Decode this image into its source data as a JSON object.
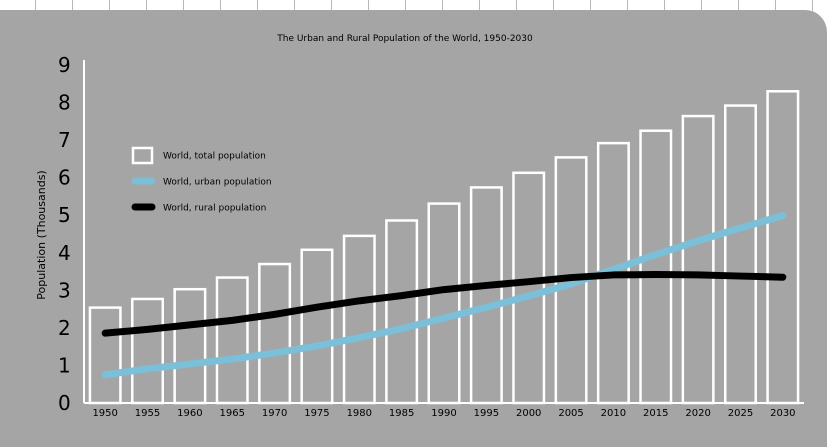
{
  "chart_data": {
    "type": "bar",
    "title": "The Urban and Rural Population of the World, 1950-2030",
    "ylabel": "Population (Thousands)",
    "xlabel": "",
    "ylim": [
      0,
      9
    ],
    "yticks": [
      0,
      1,
      2,
      3,
      4,
      5,
      6,
      7,
      8,
      9
    ],
    "categories": [
      "1950",
      "1955",
      "1960",
      "1965",
      "1970",
      "1975",
      "1980",
      "1985",
      "1990",
      "1995",
      "2000",
      "2005",
      "2010",
      "2015",
      "2020",
      "2025",
      "2030"
    ],
    "series": [
      {
        "name": "World, total population",
        "kind": "bar",
        "color": "#ffffff",
        "values": [
          2.54,
          2.77,
          3.03,
          3.34,
          3.7,
          4.08,
          4.45,
          4.86,
          5.31,
          5.74,
          6.13,
          6.54,
          6.92,
          7.25,
          7.64,
          7.92,
          8.3
        ]
      },
      {
        "name": "World, urban population",
        "kind": "line",
        "color": "#7bbfd8",
        "values": [
          0.75,
          0.91,
          1.04,
          1.17,
          1.33,
          1.52,
          1.74,
          1.98,
          2.26,
          2.55,
          2.85,
          3.17,
          3.56,
          3.95,
          4.32,
          4.66,
          4.99
        ]
      },
      {
        "name": "World, rural population",
        "kind": "line",
        "color": "#000000",
        "values": [
          1.86,
          1.96,
          2.08,
          2.2,
          2.36,
          2.55,
          2.72,
          2.86,
          3.02,
          3.13,
          3.23,
          3.34,
          3.41,
          3.42,
          3.41,
          3.38,
          3.35
        ]
      }
    ],
    "legend": "left",
    "grid": false
  }
}
